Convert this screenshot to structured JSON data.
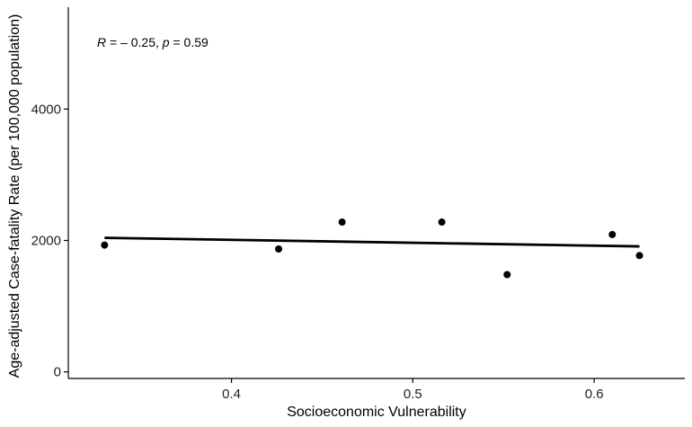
{
  "chart_data": {
    "type": "scatter",
    "title": "",
    "xlabel": "Socioeconomic Vulnerability",
    "ylabel": "Age-adjusted Case-fatality Rate (per 100,000 population)",
    "xlim": [
      0.31,
      0.65
    ],
    "ylim": [
      -100,
      5550
    ],
    "x_ticks": [
      0.4,
      0.5,
      0.6
    ],
    "y_ticks": [
      0,
      2000,
      4000
    ],
    "x_tick_labels": [
      "0.4",
      "0.5",
      "0.6"
    ],
    "y_tick_labels": [
      "0",
      "2000",
      "4000"
    ],
    "grid": false,
    "legend": "none",
    "points": [
      {
        "x": 0.33,
        "y": 1930
      },
      {
        "x": 0.426,
        "y": 1870
      },
      {
        "x": 0.461,
        "y": 2280
      },
      {
        "x": 0.516,
        "y": 2280
      },
      {
        "x": 0.552,
        "y": 1480
      },
      {
        "x": 0.61,
        "y": 2090
      },
      {
        "x": 0.625,
        "y": 1770
      }
    ],
    "fit_line": {
      "x": [
        0.33,
        0.625
      ],
      "y": [
        2040,
        1910
      ]
    },
    "annotation": {
      "r_symbol": "R",
      "r_text": " = – 0.25, ",
      "p_symbol": "p",
      "p_text": " = 0.59"
    },
    "colors": {
      "points": "#000000",
      "line": "#000000",
      "axis": "#000000"
    }
  }
}
